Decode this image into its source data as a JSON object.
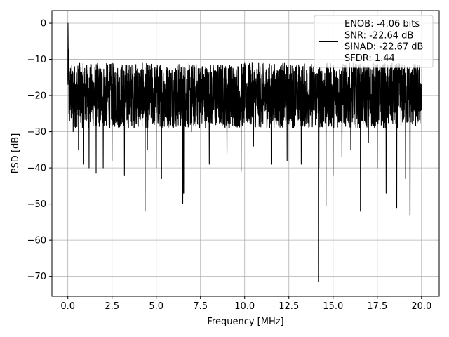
{
  "chart_data": {
    "type": "line",
    "title": "",
    "xlabel": "Frequency [MHz]",
    "ylabel": "PSD [dB]",
    "xlim": [
      -0.9,
      21.0
    ],
    "ylim": [
      -75.5,
      3.5
    ],
    "xticks": [
      0.0,
      2.5,
      5.0,
      7.5,
      10.0,
      12.5,
      15.0,
      17.5,
      20.0
    ],
    "xtick_labels": [
      "0.0",
      "2.5",
      "5.0",
      "7.5",
      "10.0",
      "12.5",
      "15.0",
      "17.5",
      "20.0"
    ],
    "yticks": [
      0,
      -10,
      -20,
      -30,
      -40,
      -50,
      -60,
      -70
    ],
    "ytick_labels": [
      "0",
      "−10",
      "−20",
      "−30",
      "−40",
      "−50",
      "−60",
      "−70"
    ],
    "grid": true,
    "legend_position": "top-right",
    "legend_lines": [
      "ENOB: -4.06 bits",
      "SNR: -22.64 dB",
      "SINAD: -22.67 dB",
      "SFDR: 1.44"
    ],
    "series": [
      {
        "color": "#000000",
        "noise_floor_db": -20,
        "upper_envelope_db": -7,
        "x": [
          0.0,
          0.01,
          0.05,
          0.3,
          0.6,
          0.9,
          1.2,
          1.6,
          2.0,
          2.5,
          3.2,
          4.37,
          4.5,
          5.0,
          5.3,
          6.5,
          6.55,
          7.0,
          8.0,
          9.0,
          9.8,
          10.5,
          11.5,
          12.4,
          13.2,
          14.17,
          14.2,
          14.6,
          15.0,
          15.5,
          16.0,
          16.55,
          17.0,
          17.5,
          18.0,
          18.6,
          19.1,
          19.35,
          20.0
        ],
        "y": [
          -15,
          0,
          -10,
          -30,
          -35,
          -39,
          -40,
          -41.5,
          -40,
          -38,
          -42,
          -52,
          -35,
          -40,
          -43,
          -50,
          -47,
          -30,
          -39,
          -36,
          -41,
          -34,
          -39,
          -38,
          -39,
          -71.5,
          -40,
          -50.5,
          -42,
          -37,
          -35,
          -52,
          -33,
          -40,
          -47,
          -51,
          -43,
          -53,
          -23
        ]
      }
    ]
  }
}
